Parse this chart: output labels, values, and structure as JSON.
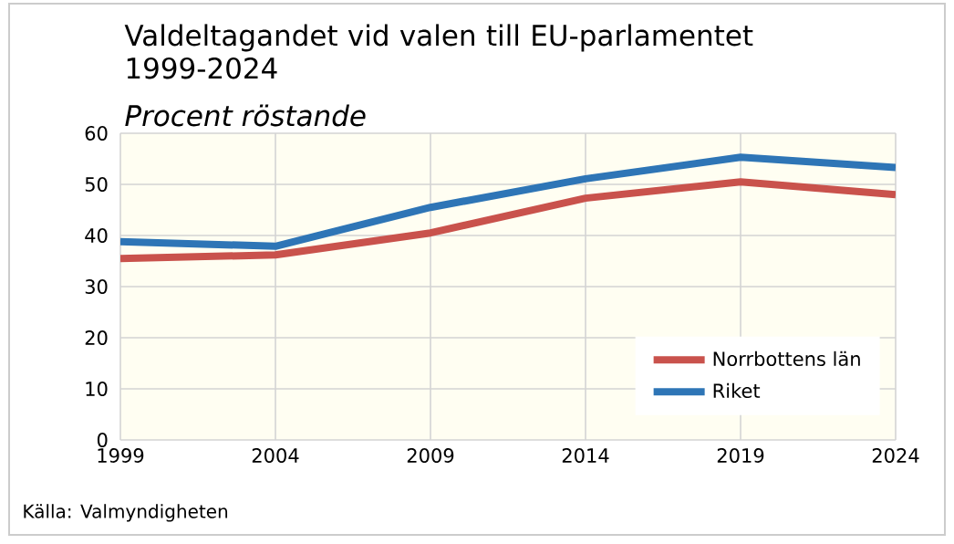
{
  "chart_data": {
    "type": "line",
    "title": "Valdeltagandet vid valen till EU-parlamentet 1999-2024",
    "subtitle": "Procent röstande",
    "x": [
      1999,
      2004,
      2009,
      2014,
      2019,
      2024
    ],
    "series": [
      {
        "name": "Norrbottens län",
        "color": "#c9524c",
        "values": [
          35.5,
          36.2,
          40.5,
          47.3,
          50.5,
          48.0
        ]
      },
      {
        "name": "Riket",
        "color": "#2e75b6",
        "values": [
          38.8,
          37.9,
          45.5,
          51.1,
          55.3,
          53.3
        ]
      }
    ],
    "xlim": [
      1999,
      2024
    ],
    "xticks": [
      1999,
      2004,
      2009,
      2014,
      2019,
      2024
    ],
    "ylim": [
      0,
      60
    ],
    "yticks": [
      0,
      10,
      20,
      30,
      40,
      50,
      60
    ],
    "grid": true,
    "legend": "bottom right",
    "marker": "none",
    "line_style": "solid",
    "annotations": [
      "Källa: Valmyndigheten"
    ]
  }
}
